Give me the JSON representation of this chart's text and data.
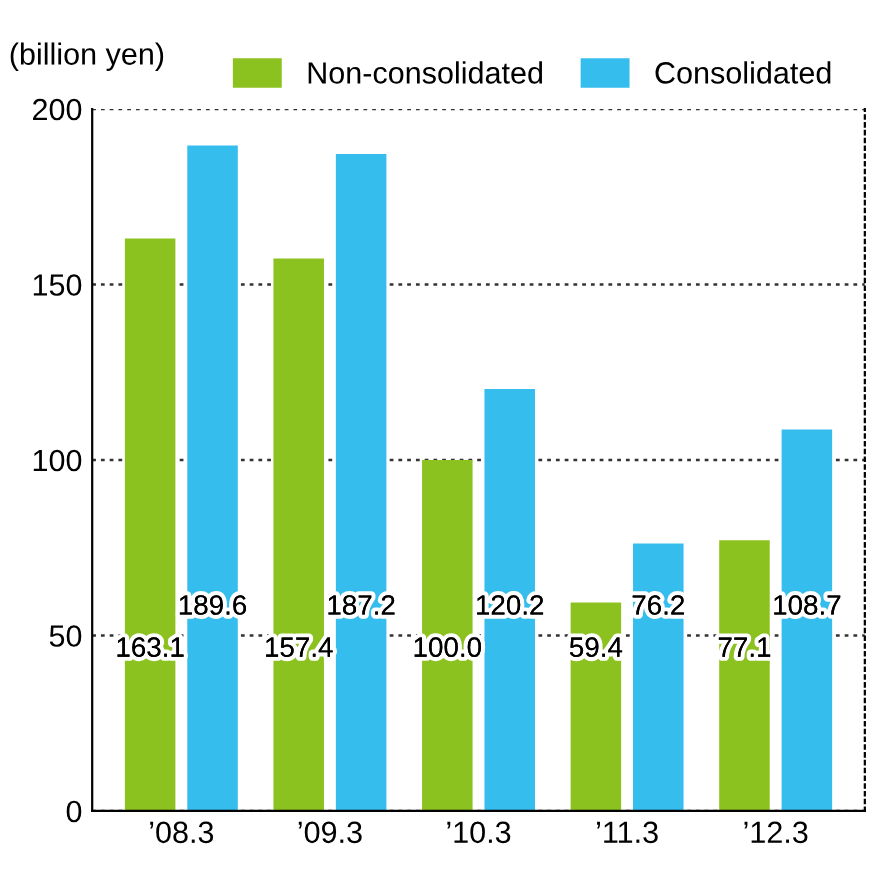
{
  "chart_data": {
    "type": "bar",
    "ylabel": "(billion yen)",
    "categories": [
      "’08.3",
      "’09.3",
      "’10.3",
      "’11.3",
      "’12.3"
    ],
    "series": [
      {
        "name": "Non-consolidated",
        "color": "#8cc21f",
        "values": [
          163.1,
          157.4,
          100.0,
          59.4,
          77.1
        ],
        "value_labels": [
          "163.1",
          "157.4",
          "100.0",
          "59.4",
          "77.1"
        ]
      },
      {
        "name": "Consolidated",
        "color": "#35bdee",
        "values": [
          189.6,
          187.2,
          120.2,
          76.2,
          108.7
        ],
        "value_labels": [
          "189.6",
          "187.2",
          "120.2",
          "76.2",
          "108.7"
        ]
      }
    ],
    "ylim": [
      0,
      200
    ],
    "yticks": [
      0,
      50,
      100,
      150,
      200
    ],
    "grid": "y",
    "legend": "top"
  }
}
